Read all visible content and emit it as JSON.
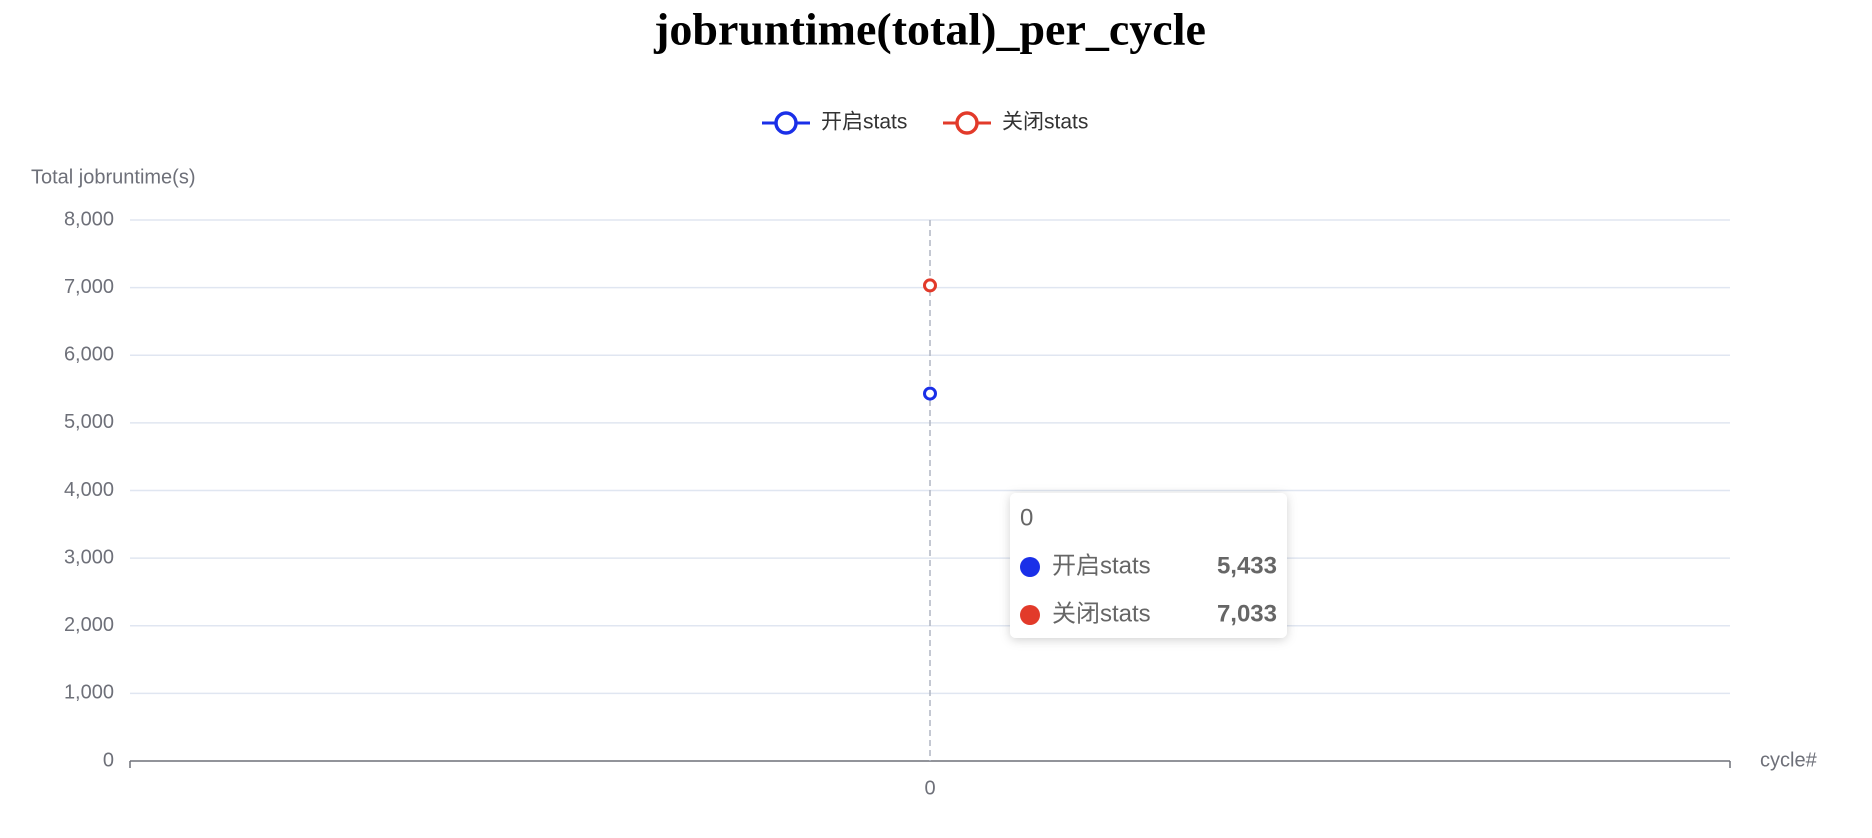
{
  "chart_data": {
    "type": "line",
    "title": "jobruntime(total)_per_cycle",
    "y_label": "Total jobruntime(s)",
    "x_label": "cycle#",
    "categories": [
      "0"
    ],
    "series": [
      {
        "name": "开启stats",
        "color": "#1a2fe8",
        "values": [
          5433
        ],
        "value_labels": [
          "5,433"
        ]
      },
      {
        "name": "关闭stats",
        "color": "#e23a2a",
        "values": [
          7033
        ],
        "value_labels": [
          "7,033"
        ]
      }
    ],
    "ylim": [
      0,
      8000
    ],
    "yticks": [
      0,
      {
        "value": 1000,
        "label": "1,000"
      },
      {
        "value": 2000,
        "label": "2,000"
      },
      {
        "value": 3000,
        "label": "3,000"
      },
      {
        "value": 4000,
        "label": "4,000"
      },
      {
        "value": 5000,
        "label": "5,000"
      },
      {
        "value": 6000,
        "label": "6,000"
      },
      {
        "value": 7000,
        "label": "7,000"
      },
      {
        "value": 8000,
        "label": "8,000"
      }
    ],
    "grid": true
  }
}
